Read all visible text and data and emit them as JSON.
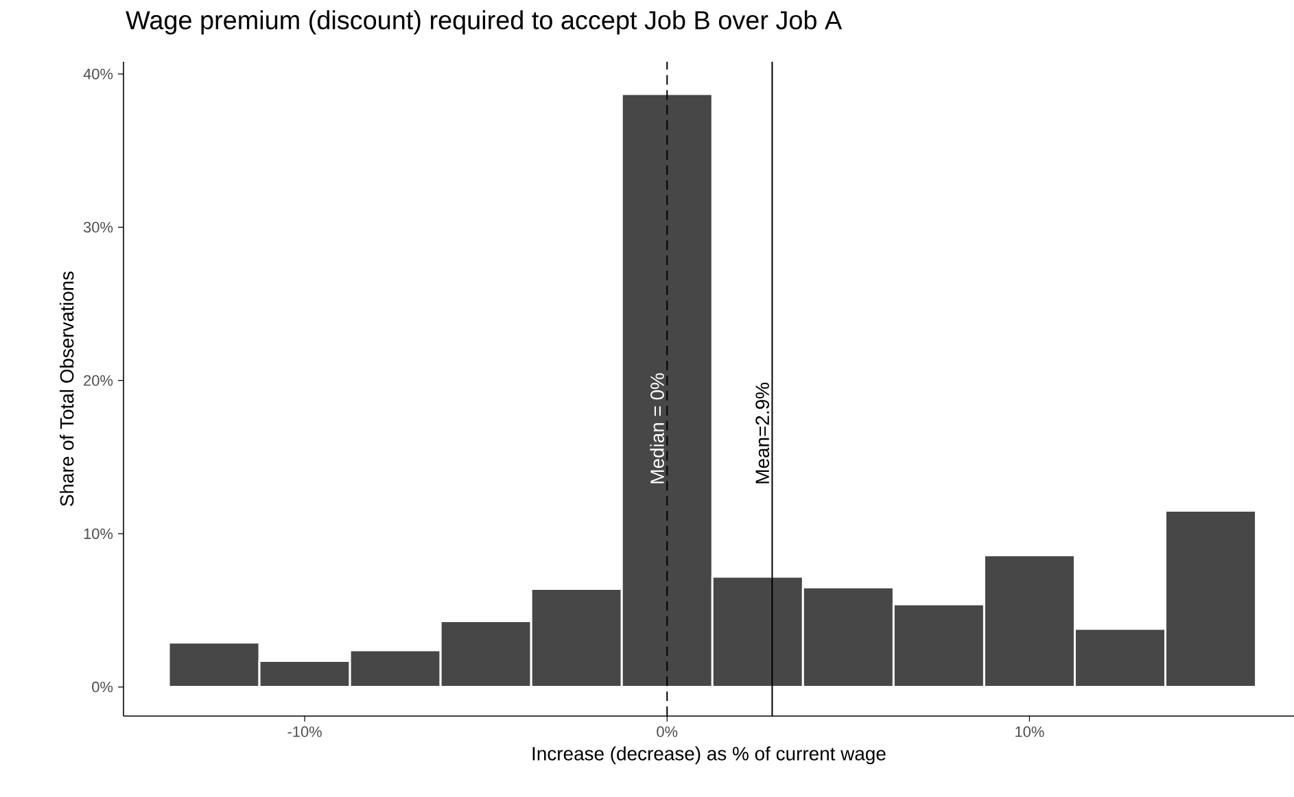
{
  "chart_data": {
    "type": "histogram",
    "title": "Wage premium (discount) required to accept Job B over Job A",
    "xlabel": "Increase (decrease) as % of current wage",
    "ylabel": "Share of Total Observations",
    "bins": [
      -13.75,
      -11.25,
      -8.75,
      -6.25,
      -3.75,
      -1.25,
      1.25,
      3.75,
      6.25,
      8.75,
      11.25,
      13.75,
      16.25
    ],
    "values": [
      2.9,
      1.7,
      2.4,
      4.3,
      6.4,
      38.7,
      7.2,
      6.5,
      5.4,
      8.6,
      3.8,
      11.5
    ],
    "color": "#474747",
    "xlim": [
      -15,
      17.3
    ],
    "ylim": [
      -1.9,
      40.8
    ],
    "xticks": [
      {
        "value": -10,
        "label": "-10%"
      },
      {
        "value": 0,
        "label": "0%"
      },
      {
        "value": 10,
        "label": "10%"
      }
    ],
    "yticks": [
      {
        "value": 0,
        "label": "0%"
      },
      {
        "value": 10,
        "label": "10%"
      },
      {
        "value": 20,
        "label": "20%"
      },
      {
        "value": 30,
        "label": "30%"
      },
      {
        "value": 40,
        "label": "40%"
      }
    ],
    "ref_lines": [
      {
        "axis": "x",
        "value": 0,
        "label": "Median = 0%",
        "line_style": "dashed"
      },
      {
        "axis": "x",
        "value": 2.9,
        "label": "Mean=2.9%",
        "line_style": "solid"
      }
    ]
  }
}
